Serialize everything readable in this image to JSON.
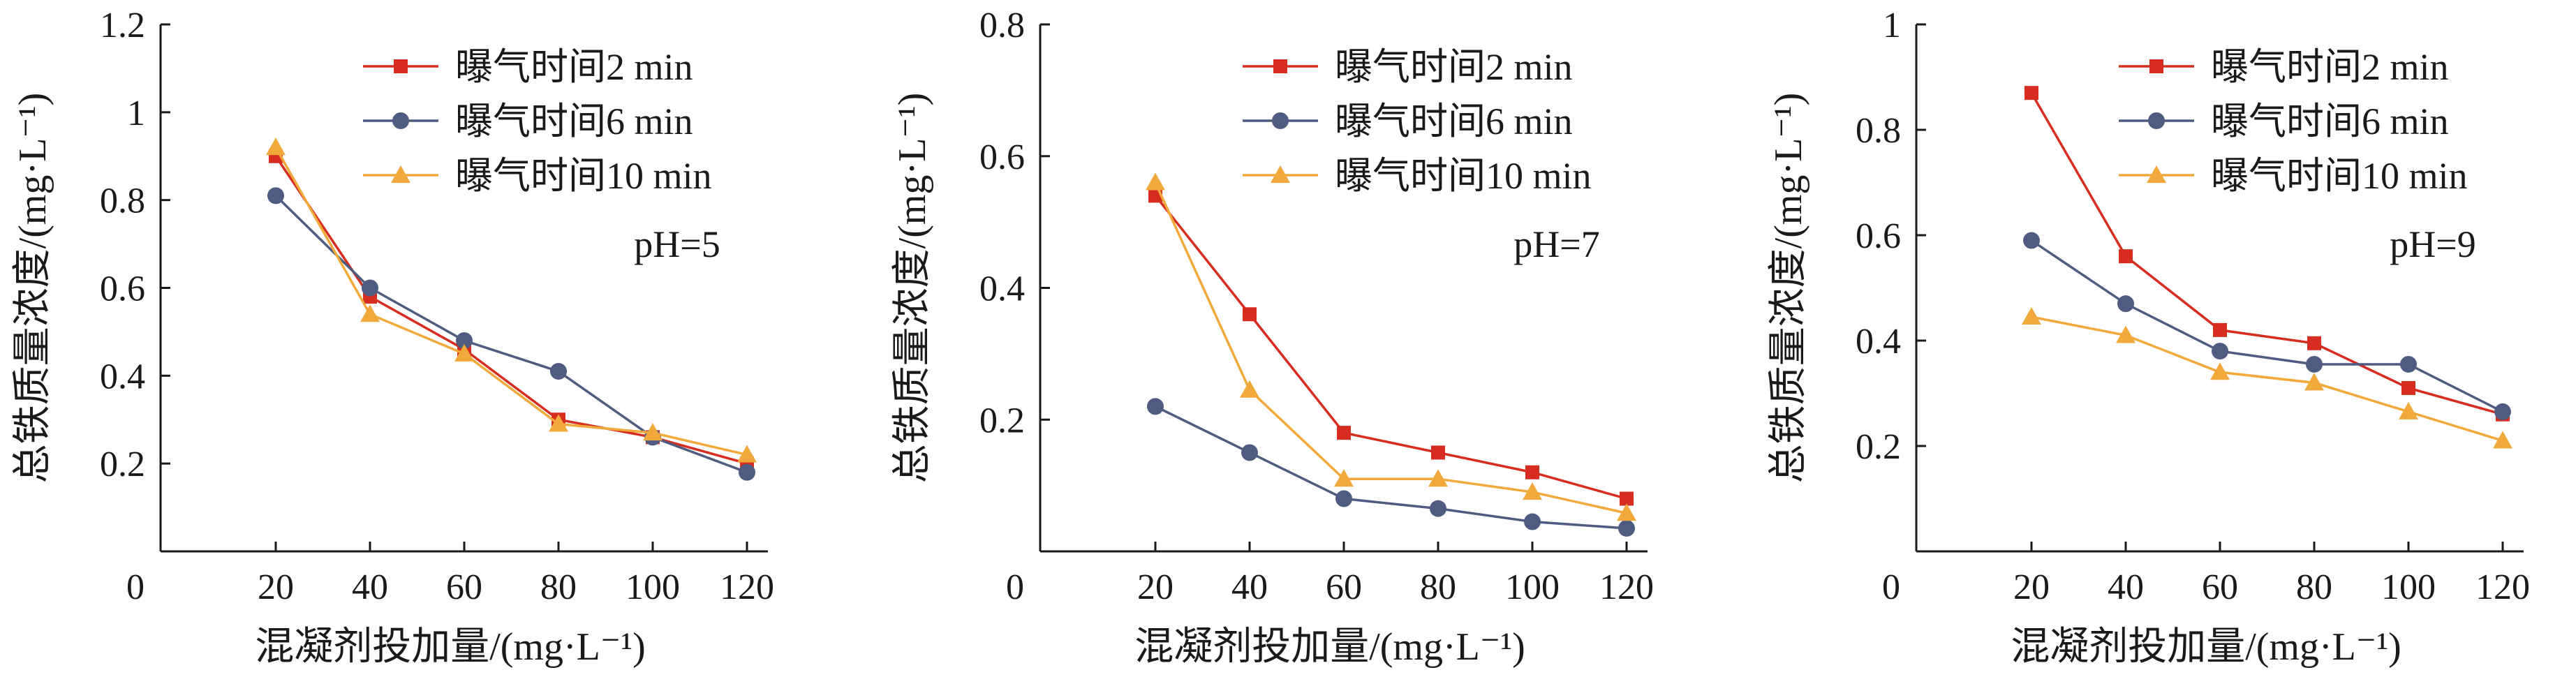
{
  "chart_data": [
    {
      "type": "line",
      "xlabel": "混凝剂投加量/(mg·L⁻¹)",
      "ylabel": "总铁质量浓度/(mg·L⁻¹)",
      "annotation": "pH=5",
      "x": [
        20,
        40,
        60,
        80,
        100,
        120
      ],
      "xlim": [
        0,
        120
      ],
      "ylim": [
        0.0,
        1.2
      ],
      "x_ticks": [
        0,
        20,
        40,
        60,
        80,
        100,
        120
      ],
      "y_ticks": [
        0.2,
        0.4,
        0.6,
        0.8,
        1.0,
        1.2
      ],
      "grid": false,
      "legend_position": "top-right",
      "series": [
        {
          "name": "曝气时间2 min",
          "color": "#d62d20",
          "marker": "square",
          "values": [
            0.9,
            0.58,
            0.46,
            0.3,
            0.26,
            0.2
          ]
        },
        {
          "name": "曝气时间6 min",
          "color": "#4d5c80",
          "marker": "circle",
          "values": [
            0.81,
            0.6,
            0.48,
            0.41,
            0.26,
            0.18
          ]
        },
        {
          "name": "曝气时间10 min",
          "color": "#f2a93b",
          "marker": "triangle",
          "values": [
            0.92,
            0.54,
            0.45,
            0.29,
            0.27,
            0.22
          ]
        }
      ]
    },
    {
      "type": "line",
      "xlabel": "混凝剂投加量/(mg·L⁻¹)",
      "ylabel": "总铁质量浓度/(mg·L⁻¹)",
      "annotation": "pH=7",
      "x": [
        20,
        40,
        60,
        80,
        100,
        120
      ],
      "xlim": [
        0,
        120
      ],
      "ylim": [
        0.0,
        0.8
      ],
      "x_ticks": [
        0,
        20,
        40,
        60,
        80,
        100,
        120
      ],
      "y_ticks": [
        0.2,
        0.4,
        0.6,
        0.8
      ],
      "grid": false,
      "legend_position": "top-right",
      "series": [
        {
          "name": "曝气时间2 min",
          "color": "#d62d20",
          "marker": "square",
          "values": [
            0.54,
            0.36,
            0.18,
            0.15,
            0.12,
            0.08
          ]
        },
        {
          "name": "曝气时间6 min",
          "color": "#4d5c80",
          "marker": "circle",
          "values": [
            0.22,
            0.15,
            0.08,
            0.065,
            0.045,
            0.035
          ]
        },
        {
          "name": "曝气时间10 min",
          "color": "#f2a93b",
          "marker": "triangle",
          "values": [
            0.56,
            0.245,
            0.11,
            0.11,
            0.09,
            0.058
          ]
        }
      ]
    },
    {
      "type": "line",
      "xlabel": "混凝剂投加量/(mg·L⁻¹)",
      "ylabel": "总铁质量浓度/(mg·L⁻¹)",
      "annotation": "pH=9",
      "x": [
        20,
        40,
        60,
        80,
        100,
        120
      ],
      "xlim": [
        0,
        120
      ],
      "ylim": [
        0.0,
        1.0
      ],
      "x_ticks": [
        0,
        20,
        40,
        60,
        80,
        100,
        120
      ],
      "y_ticks": [
        0.2,
        0.4,
        0.6,
        0.8,
        1.0
      ],
      "grid": false,
      "legend_position": "top-right",
      "series": [
        {
          "name": "曝气时间2 min",
          "color": "#d62d20",
          "marker": "square",
          "values": [
            0.87,
            0.56,
            0.42,
            0.395,
            0.31,
            0.26
          ]
        },
        {
          "name": "曝气时间6 min",
          "color": "#4d5c80",
          "marker": "circle",
          "values": [
            0.59,
            0.47,
            0.38,
            0.355,
            0.355,
            0.265
          ]
        },
        {
          "name": "曝气时间10 min",
          "color": "#f2a93b",
          "marker": "triangle",
          "values": [
            0.445,
            0.41,
            0.34,
            0.32,
            0.265,
            0.21
          ]
        }
      ]
    }
  ]
}
